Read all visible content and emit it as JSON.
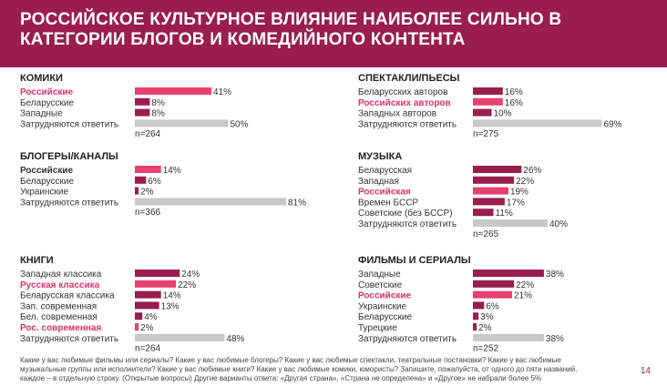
{
  "title": "РОССИЙСКОЕ КУЛЬТУРНОЕ ВЛИЯНИЕ НАИБОЛЕЕ СИЛЬНО В КАТЕГОРИИ БЛОГОВ И КОМЕДИЙНОГО КОНТЕНТА",
  "colors": {
    "header": "#9a1d4f",
    "russian": "#e8416f",
    "other": "#9a1d4f",
    "undecided": "#c8c8c8",
    "highlight_text": "#d8336e"
  },
  "chart_data": [
    {
      "type": "bar",
      "orientation": "horizontal",
      "title": "КОМИКИ",
      "categories": [
        "Российские",
        "Беларусские",
        "Западные",
        "Затрудняются ответить"
      ],
      "values": [
        41,
        8,
        8,
        50
      ],
      "value_labels": [
        "41%",
        "8%",
        "8%",
        "50%"
      ],
      "highlight": [
        true,
        false,
        false,
        false
      ],
      "kinds": [
        "russian",
        "other",
        "other",
        "undecided"
      ],
      "n": "n=264"
    },
    {
      "type": "bar",
      "orientation": "horizontal",
      "title": "СПЕКТАКЛИ/ПЬЕСЫ",
      "categories": [
        "Беларусских авторов",
        "Российских авторов",
        "Западных авторов",
        "Затрудняются ответить"
      ],
      "values": [
        16,
        16,
        10,
        69
      ],
      "value_labels": [
        "16%",
        "16%",
        "10%",
        "69%"
      ],
      "highlight": [
        false,
        true,
        false,
        false
      ],
      "kinds": [
        "other",
        "russian",
        "other",
        "undecided"
      ],
      "n": "n=275"
    },
    {
      "type": "bar",
      "orientation": "horizontal",
      "title": "БЛОГЕРЫ/КАНАЛЫ",
      "categories": [
        "Российские",
        "Беларусские",
        "Украинские",
        "Затрудняются ответить"
      ],
      "values": [
        14,
        6,
        2,
        81
      ],
      "value_labels": [
        "14%",
        "6%",
        "2%",
        "81%"
      ],
      "highlight": [
        false,
        false,
        false,
        false
      ],
      "bold": [
        true,
        false,
        false,
        false
      ],
      "kinds": [
        "russian",
        "other",
        "other",
        "undecided"
      ],
      "n": "n=366"
    },
    {
      "type": "bar",
      "orientation": "horizontal",
      "title": "МУЗЫКА",
      "categories": [
        "Беларусская",
        "Западная",
        "Российская",
        "Времен БССР",
        "Советские (без БССР)",
        "Затрудняются ответить"
      ],
      "values": [
        26,
        22,
        19,
        17,
        11,
        40
      ],
      "value_labels": [
        "26%",
        "22%",
        "19%",
        "17%",
        "11%",
        "40%"
      ],
      "highlight": [
        false,
        false,
        true,
        false,
        false,
        false
      ],
      "kinds": [
        "other",
        "other",
        "russian",
        "other",
        "other",
        "undecided"
      ],
      "n": "n=265"
    },
    {
      "type": "bar",
      "orientation": "horizontal",
      "title": "КНИГИ",
      "categories": [
        "Западная классика",
        "Русская классика",
        "Беларусская классика",
        "Зап. современная",
        "Бел. современная",
        "Рос. современная",
        "Затрудняются ответить"
      ],
      "values": [
        24,
        22,
        14,
        13,
        4,
        2,
        48
      ],
      "value_labels": [
        "24%",
        "22%",
        "14%",
        "13%",
        "4%",
        "2%",
        "48%"
      ],
      "highlight": [
        false,
        true,
        false,
        false,
        false,
        true,
        false
      ],
      "kinds": [
        "other",
        "russian",
        "other",
        "other",
        "other",
        "russian",
        "undecided"
      ],
      "n": "n=264"
    },
    {
      "type": "bar",
      "orientation": "horizontal",
      "title": "ФИЛЬМЫ И СЕРИАЛЫ",
      "categories": [
        "Западные",
        "Советские",
        "Российские",
        "Украинские",
        "Беларусские",
        "Турецкие",
        "Затрудняются ответить"
      ],
      "values": [
        38,
        22,
        21,
        6,
        3,
        2,
        38
      ],
      "value_labels": [
        "38%",
        "22%",
        "21%",
        "6%",
        "3%",
        "2%",
        "38%"
      ],
      "highlight": [
        false,
        false,
        true,
        false,
        false,
        false,
        false
      ],
      "kinds": [
        "other",
        "other",
        "russian",
        "other",
        "other",
        "other",
        "undecided"
      ],
      "n": "n=252"
    }
  ],
  "footnote": "Какие у вас любимые фильмы или сериалы? Какие у вас любимые блогеры? Какие у вас любимые спектакли, театральные постановки? Какие у вас любимые музыкальные группы или исполнители? Какие у вас любимые книги? Какие у вас любимые комики, юмористы? Запишите, пожалуйста, от одного до пяти названий, каждое – в отдельную строку. (Открытые вопросы) Другие варианты ответа: «Другая страна», «Страна не определена» и «Другое» не набрали более 5%",
  "page_number": "14"
}
